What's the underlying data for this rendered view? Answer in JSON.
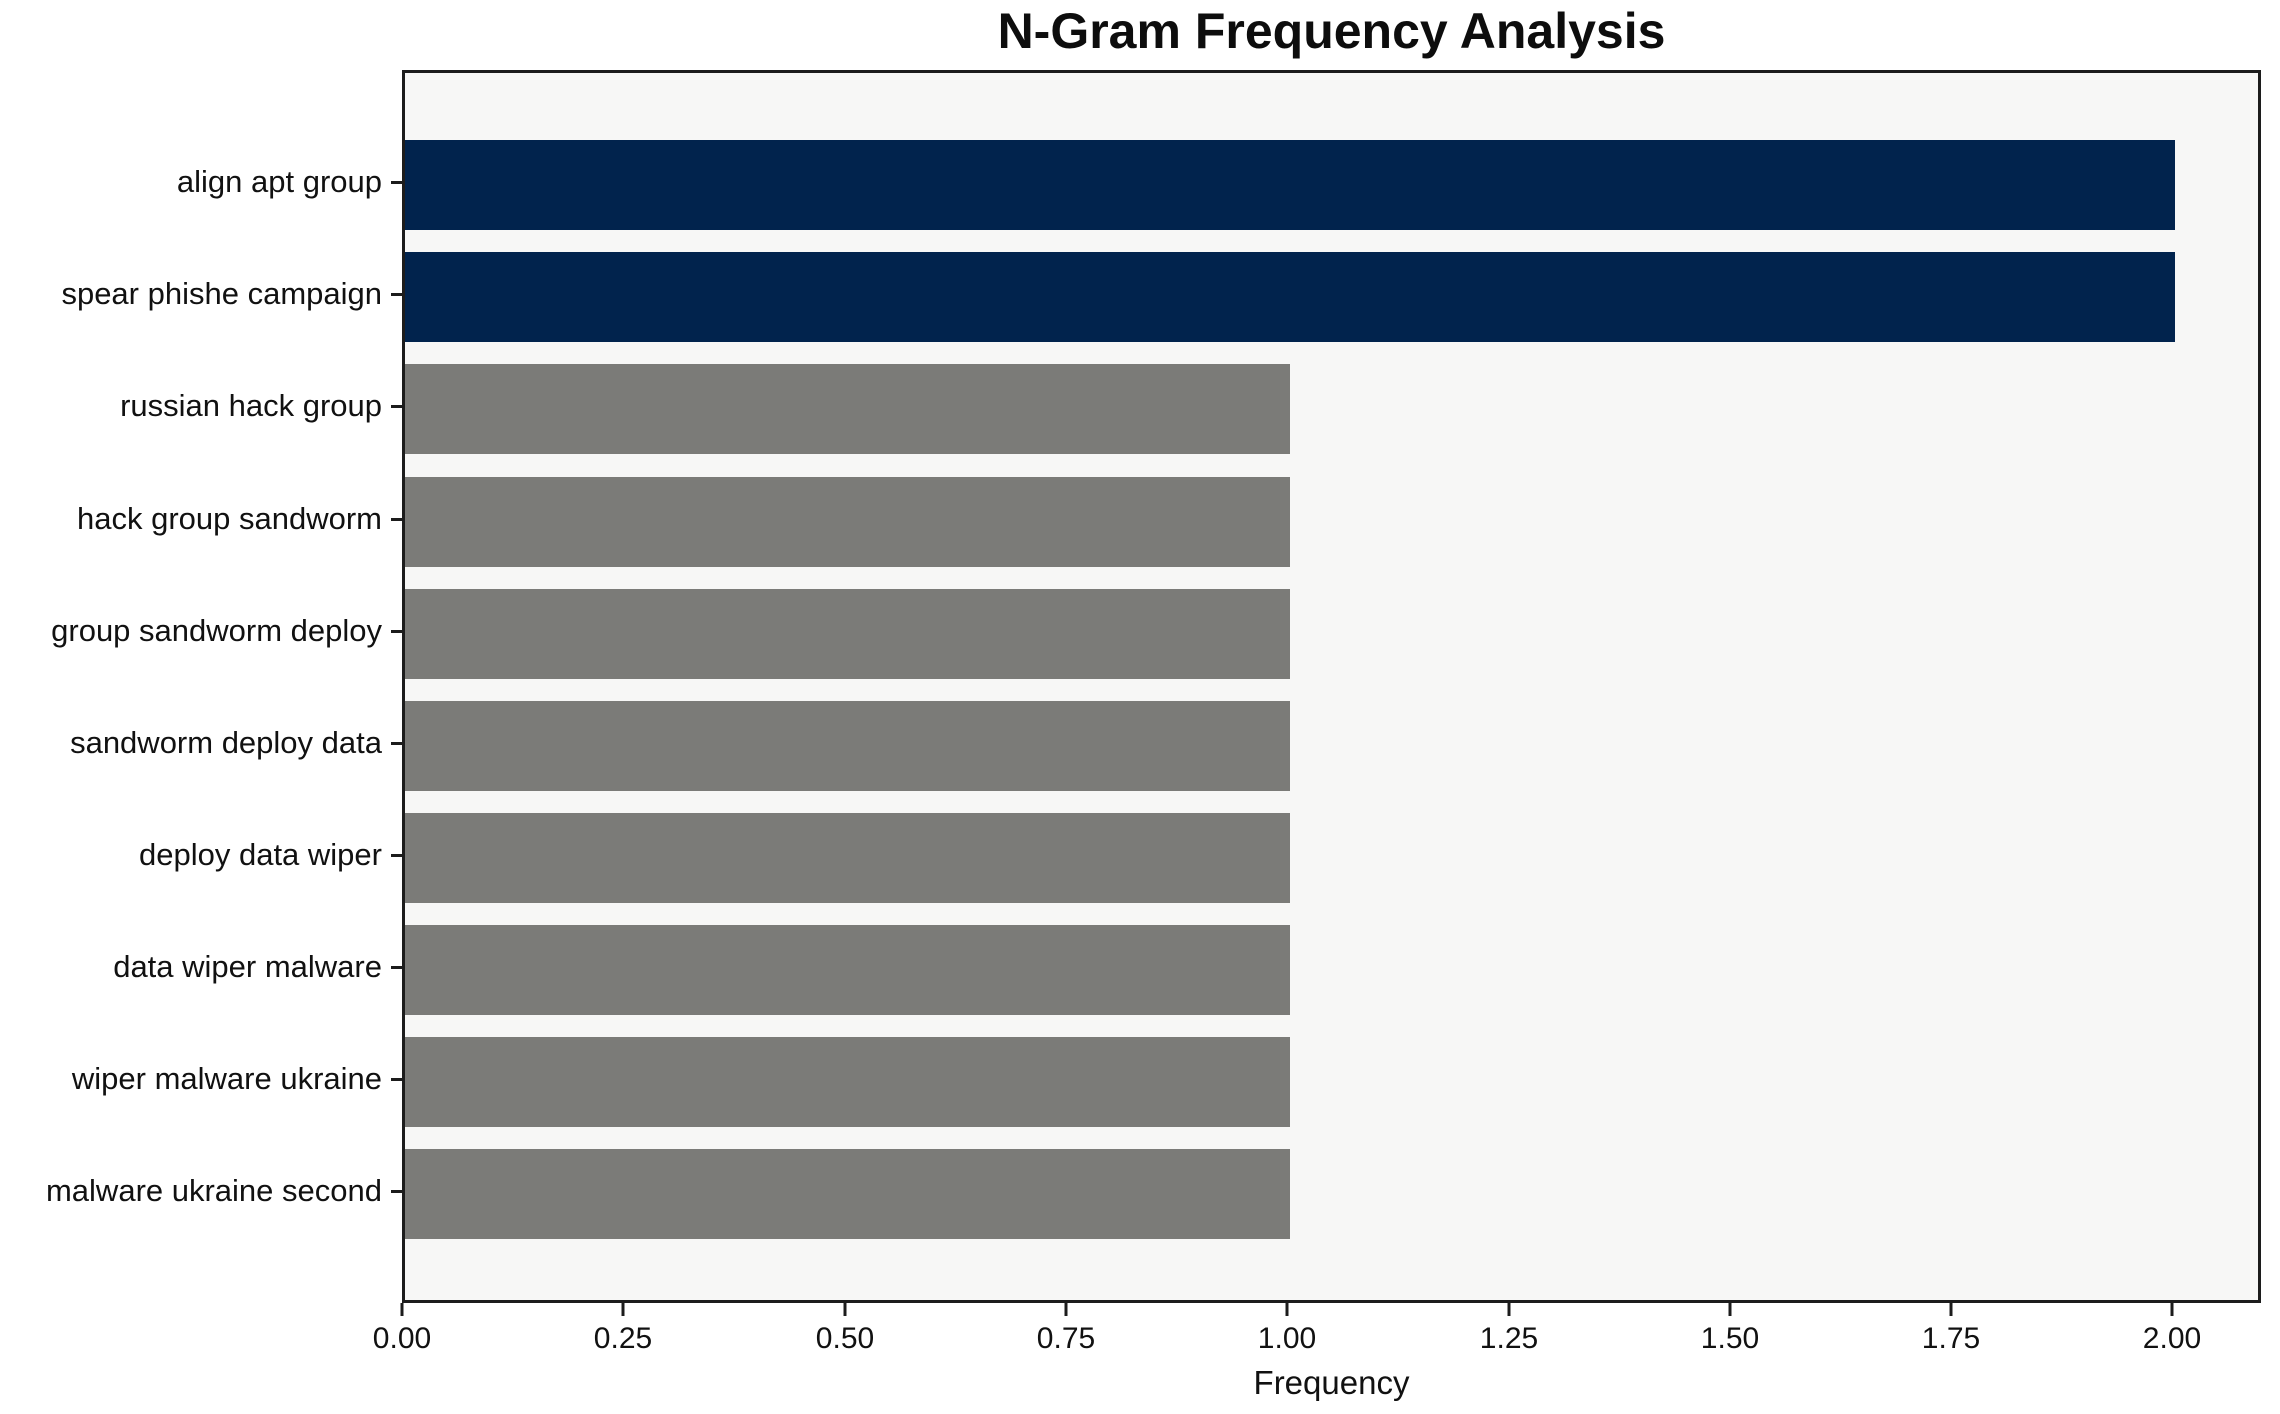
{
  "chart_data": {
    "type": "bar",
    "orientation": "horizontal",
    "title": "N-Gram Frequency Analysis",
    "xlabel": "Frequency",
    "ylabel": "",
    "categories": [
      "align apt group",
      "spear phishe campaign",
      "russian hack group",
      "hack group sandworm",
      "group sandworm deploy",
      "sandworm deploy data",
      "deploy data wiper",
      "data wiper malware",
      "wiper malware ukraine",
      "malware ukraine second"
    ],
    "values": [
      2,
      2,
      1,
      1,
      1,
      1,
      1,
      1,
      1,
      1
    ],
    "bar_colors": [
      "#01234d",
      "#01234d",
      "#7b7b78",
      "#7b7b78",
      "#7b7b78",
      "#7b7b78",
      "#7b7b78",
      "#7b7b78",
      "#7b7b78",
      "#7b7b78"
    ],
    "xlim": [
      0,
      2.1
    ],
    "xtick_labels": [
      "0.00",
      "0.25",
      "0.50",
      "0.75",
      "1.00",
      "1.25",
      "1.50",
      "1.75",
      "2.00"
    ],
    "xtick_values": [
      0,
      0.25,
      0.5,
      0.75,
      1.0,
      1.25,
      1.5,
      1.75,
      2.0
    ],
    "grid": false,
    "legend": null,
    "colors": {
      "highlight_bar": "#01234d",
      "default_bar": "#7b7b78",
      "plot_background": "#f7f7f6",
      "figure_background": "#ffffff",
      "spine": "#1c1c1c",
      "text": "#111111"
    }
  }
}
